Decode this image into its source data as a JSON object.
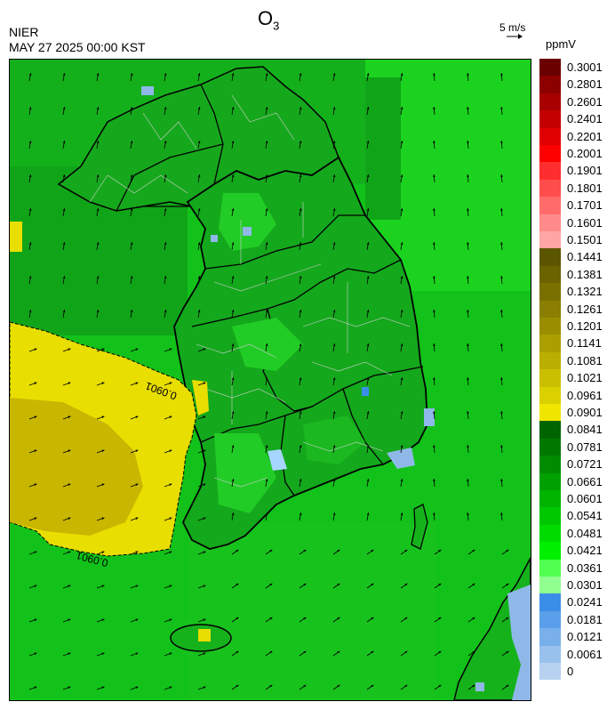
{
  "header": {
    "organization": "NIER",
    "timestamp": "MAY 27 2025 00:00 KST",
    "title_main": "O",
    "title_sub": "3",
    "wind_reference": "5 m/s",
    "unit": "ppmV"
  },
  "map": {
    "contour_labels": [
      "0.0901",
      "0.0901"
    ],
    "colors": {
      "sea_green": "#12c21a",
      "land_green": "#1aa61c",
      "dark_green": "#0d8a18",
      "bright_green": "#33e833",
      "yellow": "#e6d800",
      "olive_yellow": "#c9b500",
      "light_blue": "#8fb8e8",
      "boundary": "#000000",
      "subdivision": "#c8c8c8"
    }
  },
  "legend": {
    "items": [
      {
        "label": "0.3001",
        "color": "#6b0000"
      },
      {
        "label": "0.2801",
        "color": "#8c0000"
      },
      {
        "label": "0.2601",
        "color": "#a80000"
      },
      {
        "label": "0.2401",
        "color": "#c40000"
      },
      {
        "label": "0.2201",
        "color": "#e00000"
      },
      {
        "label": "0.2001",
        "color": "#ff0000"
      },
      {
        "label": "0.1901",
        "color": "#ff2e2e"
      },
      {
        "label": "0.1801",
        "color": "#ff4d4d"
      },
      {
        "label": "0.1701",
        "color": "#ff6b6b"
      },
      {
        "label": "0.1601",
        "color": "#ff8a8a"
      },
      {
        "label": "0.1501",
        "color": "#ffa5a5"
      },
      {
        "label": "0.1441",
        "color": "#5c5500"
      },
      {
        "label": "0.1381",
        "color": "#6b6200"
      },
      {
        "label": "0.1321",
        "color": "#7a7000"
      },
      {
        "label": "0.1261",
        "color": "#8a7f00"
      },
      {
        "label": "0.1201",
        "color": "#9a8e00"
      },
      {
        "label": "0.1141",
        "color": "#aa9e00"
      },
      {
        "label": "0.1081",
        "color": "#baaf00"
      },
      {
        "label": "0.1021",
        "color": "#cbc000"
      },
      {
        "label": "0.0961",
        "color": "#dbd000"
      },
      {
        "label": "0.0901",
        "color": "#f0e600"
      },
      {
        "label": "0.0841",
        "color": "#006400"
      },
      {
        "label": "0.0781",
        "color": "#007800"
      },
      {
        "label": "0.0721",
        "color": "#008c00"
      },
      {
        "label": "0.0661",
        "color": "#00a000"
      },
      {
        "label": "0.0601",
        "color": "#00b400"
      },
      {
        "label": "0.0541",
        "color": "#00c800"
      },
      {
        "label": "0.0481",
        "color": "#00dc00"
      },
      {
        "label": "0.0421",
        "color": "#00f000"
      },
      {
        "label": "0.0361",
        "color": "#50ff50"
      },
      {
        "label": "0.0301",
        "color": "#90ff90"
      },
      {
        "label": "0.0241",
        "color": "#3b8ee8"
      },
      {
        "label": "0.0181",
        "color": "#5a9fea"
      },
      {
        "label": "0.0121",
        "color": "#79b0ec"
      },
      {
        "label": "0.0061",
        "color": "#98c1ee"
      },
      {
        "label": "0",
        "color": "#b7d2f0"
      }
    ]
  }
}
